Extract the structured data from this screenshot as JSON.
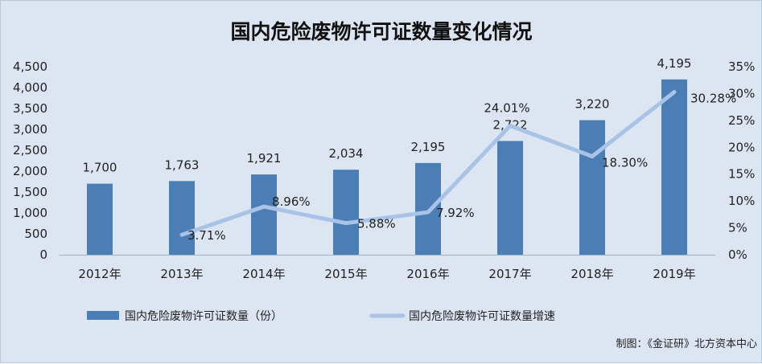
{
  "chart_data": {
    "type": "bar",
    "title": "国内危险废物许可证数量变化情况",
    "categories": [
      "2012年",
      "2013年",
      "2014年",
      "2015年",
      "2016年",
      "2017年",
      "2018年",
      "2019年"
    ],
    "series": [
      {
        "name": "国内危险废物许可证数量（份）",
        "type": "bar",
        "axis": "left",
        "values": [
          1700,
          1763,
          1921,
          2034,
          2195,
          2722,
          3220,
          4195
        ],
        "labels": [
          "1,700",
          "1,763",
          "1,921",
          "2,034",
          "2,195",
          "2,722",
          "3,220",
          "4,195"
        ],
        "color": "#4a7eb4"
      },
      {
        "name": "国内危险废物许可证数量增速",
        "type": "line",
        "axis": "right",
        "values": [
          null,
          3.71,
          8.96,
          5.88,
          7.92,
          24.01,
          18.3,
          30.28
        ],
        "labels": [
          "",
          "3.71%",
          "8.96%",
          "5.88%",
          "7.92%",
          "24.01%",
          "18.30%",
          "30.28%"
        ],
        "color": "#a9c3e6"
      }
    ],
    "y_left": {
      "range": [
        0,
        4500
      ],
      "ticks": [
        0,
        500,
        1000,
        1500,
        2000,
        2500,
        3000,
        3500,
        4000,
        4500
      ],
      "tick_labels": [
        "0",
        "500",
        "1,000",
        "1,500",
        "2,000",
        "2,500",
        "3,000",
        "3,500",
        "4,000",
        "4,500"
      ]
    },
    "y_right": {
      "range": [
        0,
        35
      ],
      "ticks": [
        0,
        5,
        10,
        15,
        20,
        25,
        30,
        35
      ],
      "tick_labels": [
        "0%",
        "5%",
        "10%",
        "15%",
        "20%",
        "25%",
        "30%",
        "35%"
      ]
    },
    "grid": false,
    "legend": "bottom",
    "background": "#dce6f2"
  },
  "source": "制图：《金证研》北方资本中心"
}
